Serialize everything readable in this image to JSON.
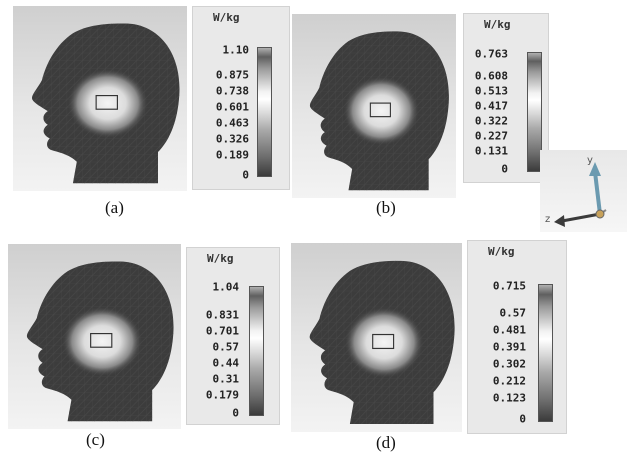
{
  "panels": [
    {
      "caption": "(a)",
      "unit": "W/kg",
      "ticks": [
        "1.10",
        "0.875",
        "0.738",
        "0.601",
        "0.463",
        "0.326",
        "0.189",
        "0"
      ]
    },
    {
      "caption": "(b)",
      "unit": "W/kg",
      "ticks": [
        "0.763",
        "0.608",
        "0.513",
        "0.417",
        "0.322",
        "0.227",
        "0.131",
        "0"
      ]
    },
    {
      "caption": "(c)",
      "unit": "W/kg",
      "ticks": [
        "1.04",
        "0.831",
        "0.701",
        "0.57",
        "0.44",
        "0.31",
        "0.179",
        "0"
      ]
    },
    {
      "caption": "(d)",
      "unit": "W/kg",
      "ticks": [
        "0.715",
        "0.57",
        "0.481",
        "0.391",
        "0.302",
        "0.212",
        "0.123",
        "0"
      ]
    }
  ],
  "axes": {
    "y_label": "y",
    "z_label": "z"
  }
}
